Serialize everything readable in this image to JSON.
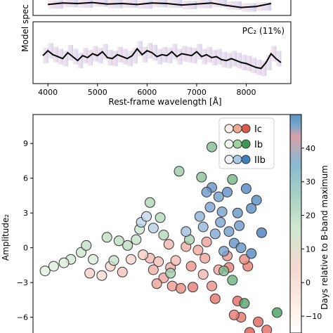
{
  "chart_data": [
    {
      "type": "line",
      "panel": "top",
      "title": "",
      "xlabel": "",
      "ylabel": "",
      "xlim": [
        3700,
        8900
      ],
      "x": [
        4000,
        4300,
        4600,
        4900,
        5200,
        5500,
        5800,
        6100,
        6400,
        6700,
        7000,
        7300,
        7600,
        7900,
        8200,
        8500
      ],
      "series": [
        {
          "values": [
            0.4,
            0.55,
            0.5,
            0.6,
            0.45,
            0.5,
            0.4,
            0.55,
            0.5,
            0.35,
            0.45,
            0.55,
            0.3,
            0.1,
            0.2,
            0.5
          ]
        }
      ]
    },
    {
      "type": "line",
      "panel": "middle",
      "title": "",
      "annotation": "PC₂ (11%)",
      "xlabel": "Rest-frame wavelength [Å]",
      "ylabel": "Model spec",
      "xlim": [
        3700,
        8900
      ],
      "xticks": [
        "4000",
        "5000",
        "6000",
        "7000",
        "8000"
      ],
      "x": [
        3900,
        4000,
        4100,
        4200,
        4300,
        4400,
        4500,
        4600,
        4700,
        4800,
        4900,
        5000,
        5100,
        5200,
        5300,
        5400,
        5500,
        5600,
        5700,
        5800,
        5900,
        6000,
        6100,
        6200,
        6300,
        6400,
        6500,
        6600,
        6700,
        6800,
        6900,
        7000,
        7100,
        7200,
        7300,
        7400,
        7500,
        7600,
        7700,
        7800,
        7900,
        8000,
        8100,
        8200,
        8300,
        8400,
        8500,
        8600,
        8700
      ],
      "series": [
        {
          "values": [
            0.1,
            0.35,
            0.15,
            0.05,
            -0.05,
            0.25,
            0.05,
            -0.15,
            0.1,
            0.0,
            0.2,
            0.1,
            0.3,
            0.0,
            -0.05,
            0.15,
            0.05,
            -0.05,
            0.1,
            0.45,
            0.15,
            0.35,
            0.25,
            0.05,
            0.15,
            0.1,
            0.3,
            0.05,
            0.2,
            0.15,
            0.1,
            0.3,
            0.05,
            0.15,
            0.0,
            0.05,
            -0.1,
            -0.15,
            -0.05,
            -0.15,
            -0.25,
            -0.3,
            -0.4,
            -0.5,
            -0.55,
            -0.25,
            0.2,
            -0.05,
            -0.25
          ]
        }
      ]
    },
    {
      "type": "scatter",
      "panel": "bottom",
      "title": "",
      "xlabel": "",
      "ylabel": "Amplitude₂",
      "ylim": [
        -7.6,
        11.5
      ],
      "yticks": [
        "9",
        "6",
        "3",
        "0",
        "−3",
        "−6"
      ],
      "ytick_values": [
        9,
        6,
        3,
        0,
        -3,
        -6
      ],
      "xlim": [
        -5,
        10
      ],
      "colorbar": {
        "label": "Days relative to B-band maximum",
        "range": [
          -15,
          50
        ],
        "ticks": [
          "40",
          "30",
          "20",
          "10",
          "0",
          "−10"
        ],
        "tick_values": [
          40,
          30,
          20,
          10,
          0,
          -10
        ]
      },
      "legend": {
        "position": "top-right",
        "entries": [
          {
            "label": "Ic",
            "colors": [
              "#fbeee6",
              "#f0a88f",
              "#d95a4a"
            ]
          },
          {
            "label": "Ib",
            "colors": [
              "#eef7ea",
              "#9fd39a",
              "#3b9a55"
            ]
          },
          {
            "label": "IIb",
            "colors": [
              "#eef3fa",
              "#a8c9e6",
              "#3f7fbf"
            ]
          }
        ]
      },
      "series": [
        {
          "name": "Ic",
          "points": [
            {
              "x": 1.8,
              "y": -0.9,
              "c": 5
            },
            {
              "x": 2.3,
              "y": -1.2,
              "c": 2
            },
            {
              "x": 1.4,
              "y": -0.6,
              "c": -3
            },
            {
              "x": 0.7,
              "y": -1.0,
              "c": -5
            },
            {
              "x": -0.5,
              "y": -1.6,
              "c": -5
            },
            {
              "x": -1.0,
              "y": -2.4,
              "c": -8
            },
            {
              "x": -1.7,
              "y": -2.2,
              "c": -4
            },
            {
              "x": 2.6,
              "y": -2.6,
              "c": 12
            },
            {
              "x": 3.1,
              "y": -3.3,
              "c": 16
            },
            {
              "x": 3.6,
              "y": -3.5,
              "c": 22
            },
            {
              "x": 4.3,
              "y": -3.4,
              "c": 25
            },
            {
              "x": 5.4,
              "y": -3.3,
              "c": 20
            },
            {
              "x": 4.2,
              "y": -1.6,
              "c": 18
            },
            {
              "x": 3.0,
              "y": -1.7,
              "c": 10
            },
            {
              "x": 5.8,
              "y": -1.9,
              "c": 12
            },
            {
              "x": 6.4,
              "y": -1.7,
              "c": 25
            },
            {
              "x": 5.6,
              "y": -4.4,
              "c": 30
            },
            {
              "x": 6.9,
              "y": -4.6,
              "c": 32
            },
            {
              "x": 7.1,
              "y": -6.0,
              "c": 30
            },
            {
              "x": 6.7,
              "y": -5.8,
              "c": 28
            },
            {
              "x": 8.1,
              "y": -6.4,
              "c": 35
            },
            {
              "x": 7.6,
              "y": -7.3,
              "c": 40
            },
            {
              "x": 8.6,
              "y": -7.1,
              "c": 32
            },
            {
              "x": 2.0,
              "y": -1.9,
              "c": 8
            },
            {
              "x": 3.3,
              "y": -1.1,
              "c": 4
            },
            {
              "x": 4.9,
              "y": -2.3,
              "c": 6
            },
            {
              "x": 5.1,
              "y": 0.5,
              "c": 14
            },
            {
              "x": 3.9,
              "y": 0.1,
              "c": 9
            },
            {
              "x": 6.3,
              "y": -0.7,
              "c": 18
            },
            {
              "x": 7.5,
              "y": -1.6,
              "c": 26
            },
            {
              "x": 7.3,
              "y": -1.0,
              "c": 22
            },
            {
              "x": 4.6,
              "y": -0.2,
              "c": 11
            },
            {
              "x": 2.9,
              "y": 0.3,
              "c": 6
            },
            {
              "x": 0.2,
              "y": -2.1,
              "c": 1
            },
            {
              "x": 2.2,
              "y": -3.1,
              "c": 14
            },
            {
              "x": 5.0,
              "y": -0.9,
              "c": 12
            }
          ]
        },
        {
          "name": "Ib",
          "points": [
            {
              "x": 5.4,
              "y": 8.7,
              "c": 20
            },
            {
              "x": 3.5,
              "y": 6.6,
              "c": 12
            },
            {
              "x": 4.8,
              "y": 6.1,
              "c": 18
            },
            {
              "x": 6.6,
              "y": 5.9,
              "c": 25
            },
            {
              "x": 1.8,
              "y": 3.9,
              "c": 6
            },
            {
              "x": 2.4,
              "y": 2.6,
              "c": 4
            },
            {
              "x": 1.2,
              "y": 1.6,
              "c": -3
            },
            {
              "x": 1.0,
              "y": 0.7,
              "c": -1
            },
            {
              "x": 2.6,
              "y": 1.1,
              "c": 5
            },
            {
              "x": -1.5,
              "y": -1.0,
              "c": -8
            },
            {
              "x": -3.8,
              "y": -1.6,
              "c": -10
            },
            {
              "x": -2.8,
              "y": -1.0,
              "c": -6
            },
            {
              "x": -2.2,
              "y": -0.4,
              "c": -4
            },
            {
              "x": -1.9,
              "y": 0.2,
              "c": -1
            },
            {
              "x": -0.7,
              "y": 0.9,
              "c": 0
            },
            {
              "x": 0.0,
              "y": 0.6,
              "c": 1
            },
            {
              "x": 0.5,
              "y": 0.2,
              "c": 2
            },
            {
              "x": 6.1,
              "y": -2.0,
              "c": 22
            },
            {
              "x": 6.6,
              "y": -2.8,
              "c": 28
            },
            {
              "x": 7.3,
              "y": -4.8,
              "c": 36
            },
            {
              "x": 9.2,
              "y": -5.6,
              "c": 40
            },
            {
              "x": 3.0,
              "y": -2.2,
              "c": 10
            },
            {
              "x": 4.1,
              "y": 0.7,
              "c": 9
            },
            {
              "x": -4.3,
              "y": -2.0,
              "c": -12
            },
            {
              "x": -3.2,
              "y": -1.3,
              "c": -9
            },
            {
              "x": -0.3,
              "y": -1.1,
              "c": -2
            }
          ]
        },
        {
          "name": "IIb",
          "points": [
            {
              "x": 6.6,
              "y": 7.6,
              "c": 38
            },
            {
              "x": 5.4,
              "y": 5.2,
              "c": 30
            },
            {
              "x": 5.1,
              "y": 4.8,
              "c": 28
            },
            {
              "x": 5.8,
              "y": 4.4,
              "c": 26
            },
            {
              "x": 6.3,
              "y": 4.8,
              "c": 32
            },
            {
              "x": 7.4,
              "y": 5.1,
              "c": 36
            },
            {
              "x": 8.0,
              "y": 4.1,
              "c": 35
            },
            {
              "x": 7.7,
              "y": 3.4,
              "c": 33
            },
            {
              "x": 6.9,
              "y": 3.0,
              "c": 30
            },
            {
              "x": 6.0,
              "y": 3.1,
              "c": 24
            },
            {
              "x": 5.3,
              "y": 3.5,
              "c": 22
            },
            {
              "x": 4.7,
              "y": 2.7,
              "c": 16
            },
            {
              "x": 4.9,
              "y": 1.8,
              "c": 14
            },
            {
              "x": 5.6,
              "y": 1.2,
              "c": 20
            },
            {
              "x": 6.4,
              "y": 1.4,
              "c": 26
            },
            {
              "x": 7.0,
              "y": 1.9,
              "c": 28
            },
            {
              "x": 8.3,
              "y": 1.3,
              "c": 40
            },
            {
              "x": 6.7,
              "y": 0.4,
              "c": 30
            },
            {
              "x": 6.1,
              "y": -0.3,
              "c": 24
            },
            {
              "x": 7.7,
              "y": -0.5,
              "c": 36
            },
            {
              "x": 7.1,
              "y": 0.0,
              "c": 30
            },
            {
              "x": 2.0,
              "y": 1.7,
              "c": 2
            },
            {
              "x": 1.3,
              "y": 2.2,
              "c": 0
            },
            {
              "x": 1.6,
              "y": 2.7,
              "c": -2
            },
            {
              "x": 5.9,
              "y": 2.2,
              "c": 22
            },
            {
              "x": 3.9,
              "y": 1.4,
              "c": 10
            }
          ]
        }
      ]
    }
  ]
}
